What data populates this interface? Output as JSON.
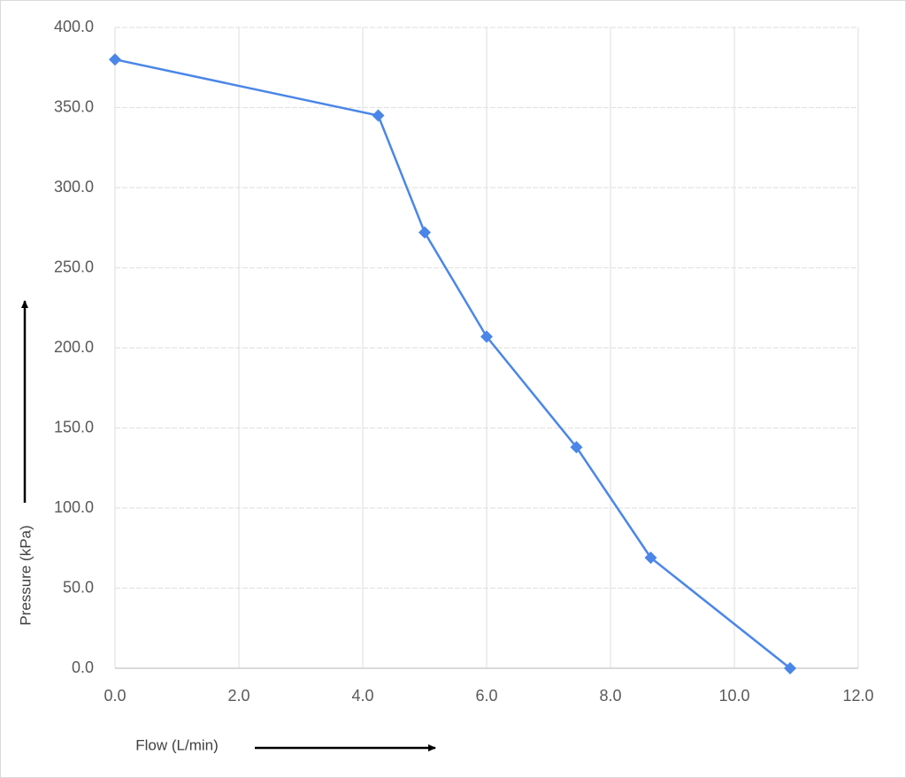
{
  "chart_data": {
    "type": "line",
    "x_label": "Flow (L/min)",
    "y_label": "Pressure (kPa)",
    "series": [
      {
        "name": "Pressure",
        "color": "#4a86e8",
        "x": [
          0,
          4.25,
          5.0,
          6.0,
          7.45,
          8.65,
          10.9
        ],
        "values": [
          380,
          345,
          272,
          207,
          138,
          69,
          0
        ]
      }
    ],
    "xlim": [
      0,
      12
    ],
    "ylim": [
      0,
      400
    ],
    "xticks": [
      {
        "value": 0,
        "label": "0.0"
      },
      {
        "value": 2,
        "label": "2.0"
      },
      {
        "value": 4,
        "label": "4.0"
      },
      {
        "value": 6,
        "label": "6.0"
      },
      {
        "value": 8,
        "label": "8.0"
      },
      {
        "value": 10,
        "label": "10.0"
      },
      {
        "value": 12,
        "label": "12.0"
      }
    ],
    "yticks": [
      {
        "value": 0,
        "label": "0.0"
      },
      {
        "value": 50,
        "label": "50.0"
      },
      {
        "value": 100,
        "label": "100.0"
      },
      {
        "value": 150,
        "label": "150.0"
      },
      {
        "value": 200,
        "label": "200.0"
      },
      {
        "value": 250,
        "label": "250.0"
      },
      {
        "value": 300,
        "label": "300.0"
      },
      {
        "value": 350,
        "label": "350.0"
      },
      {
        "value": 400,
        "label": "400.0"
      }
    ],
    "grid": true
  }
}
